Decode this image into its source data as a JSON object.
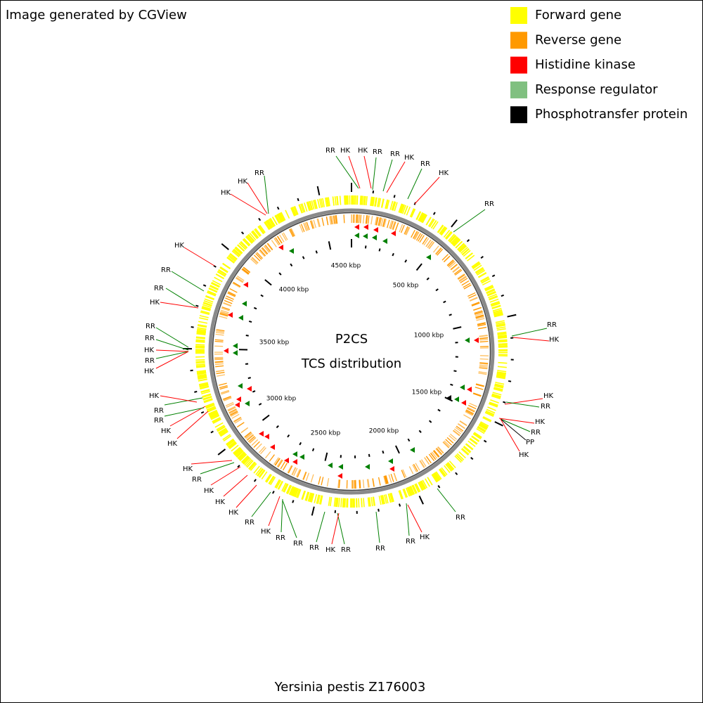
{
  "header": {
    "credit": "Image generated by CGView"
  },
  "legend": [
    {
      "label": "Forward gene",
      "color": "#ffff00"
    },
    {
      "label": "Reverse gene",
      "color": "#ff9900"
    },
    {
      "label": "Histidine kinase",
      "color": "#ff0000"
    },
    {
      "label": "Response regulator",
      "color": "#80c080"
    },
    {
      "label": "Phosphotransfer protein",
      "color": "#000000"
    }
  ],
  "center": {
    "title": "P2CS",
    "subtitle": "TCS distribution"
  },
  "scale_labels": [
    "500 kbp",
    "1000 kbp",
    "1500 kbp",
    "2000 kbp",
    "2500 kbp",
    "3000 kbp",
    "3500 kbp",
    "4000 kbp",
    "4500 kbp"
  ],
  "features": [
    {
      "label": "RR",
      "color": "#008000"
    },
    {
      "label": "HK",
      "color": "#ff0000"
    },
    {
      "label": "HK",
      "color": "#ff0000"
    },
    {
      "label": "RR",
      "color": "#008000"
    },
    {
      "label": "RR",
      "color": "#008000"
    },
    {
      "label": "HK",
      "color": "#ff0000"
    },
    {
      "label": "RR",
      "color": "#008000"
    },
    {
      "label": "HK",
      "color": "#ff0000"
    },
    {
      "label": "RR",
      "color": "#008000"
    },
    {
      "label": "RR",
      "color": "#008000"
    },
    {
      "label": "HK",
      "color": "#ff0000"
    },
    {
      "label": "HK",
      "color": "#ff0000"
    },
    {
      "label": "RR",
      "color": "#008000"
    },
    {
      "label": "HK",
      "color": "#ff0000"
    },
    {
      "label": "RR",
      "color": "#008000"
    },
    {
      "label": "PP",
      "color": "#000000"
    },
    {
      "label": "HK",
      "color": "#ff0000"
    },
    {
      "label": "RR",
      "color": "#008000"
    },
    {
      "label": "HK",
      "color": "#ff0000"
    },
    {
      "label": "RR",
      "color": "#008000"
    },
    {
      "label": "RR",
      "color": "#008000"
    },
    {
      "label": "RR",
      "color": "#008000"
    },
    {
      "label": "HK",
      "color": "#ff0000"
    },
    {
      "label": "RR",
      "color": "#008000"
    },
    {
      "label": "RR",
      "color": "#008000"
    },
    {
      "label": "RR",
      "color": "#008000"
    },
    {
      "label": "HK",
      "color": "#ff0000"
    },
    {
      "label": "RR",
      "color": "#008000"
    },
    {
      "label": "HK",
      "color": "#ff0000"
    },
    {
      "label": "HK",
      "color": "#ff0000"
    },
    {
      "label": "HK",
      "color": "#ff0000"
    },
    {
      "label": "RR",
      "color": "#008000"
    },
    {
      "label": "HK",
      "color": "#ff0000"
    },
    {
      "label": "HK",
      "color": "#ff0000"
    },
    {
      "label": "HK",
      "color": "#ff0000"
    },
    {
      "label": "RR",
      "color": "#008000"
    },
    {
      "label": "RR",
      "color": "#008000"
    },
    {
      "label": "HK",
      "color": "#ff0000"
    },
    {
      "label": "HK",
      "color": "#ff0000"
    },
    {
      "label": "RR",
      "color": "#008000"
    },
    {
      "label": "HK",
      "color": "#ff0000"
    },
    {
      "label": "RR",
      "color": "#008000"
    },
    {
      "label": "RR",
      "color": "#008000"
    },
    {
      "label": "HK",
      "color": "#ff0000"
    },
    {
      "label": "RR",
      "color": "#008000"
    },
    {
      "label": "RR",
      "color": "#008000"
    },
    {
      "label": "HK",
      "color": "#ff0000"
    },
    {
      "label": "HK",
      "color": "#ff0000"
    },
    {
      "label": "HK",
      "color": "#ff0000"
    },
    {
      "label": "RR",
      "color": "#008000"
    }
  ],
  "footer": "Yersinia pestis Z176003"
}
